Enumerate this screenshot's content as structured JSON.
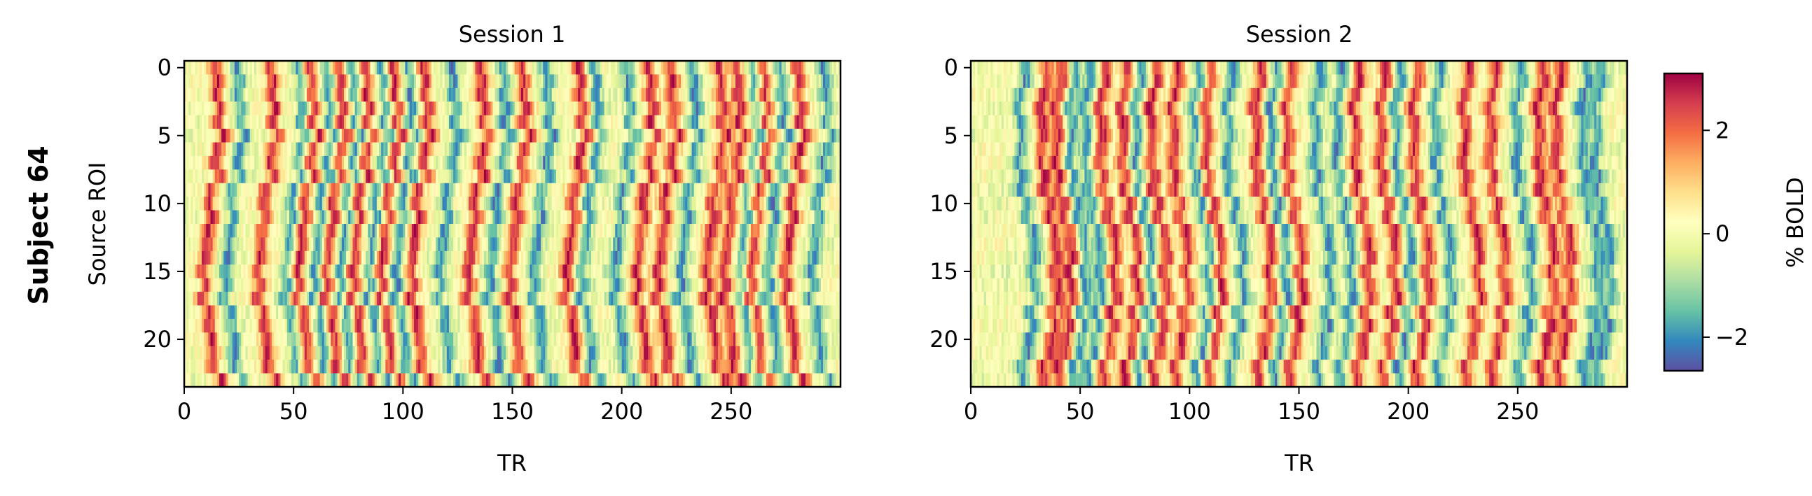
{
  "figure": {
    "row_label": "Subject 64"
  },
  "chart_data": [
    {
      "type": "heatmap",
      "title": "Session 1",
      "xlabel": "TR",
      "ylabel": "Source ROI",
      "xlim": [
        0,
        300
      ],
      "ylim": [
        24,
        0
      ],
      "n_rows": 24,
      "n_cols": 300,
      "x_ticks": [
        0,
        50,
        100,
        150,
        200,
        250
      ],
      "y_ticks": [
        0,
        5,
        10,
        15,
        20
      ],
      "x_tick_labels": [
        "0",
        "50",
        "100",
        "150",
        "200",
        "250"
      ],
      "y_tick_labels": [
        "0",
        "5",
        "10",
        "15",
        "20"
      ],
      "colormap": "Spectral_r",
      "peak_TRs": [
        12,
        37,
        55,
        68,
        80,
        93,
        107,
        133,
        152,
        178,
        210,
        220,
        242,
        250,
        262,
        278
      ],
      "trough_TRs": [
        22,
        50,
        63,
        75,
        88,
        100,
        120,
        143,
        163,
        185,
        200,
        230,
        258,
        270,
        290
      ]
    },
    {
      "type": "heatmap",
      "title": "Session 2",
      "xlabel": "TR",
      "ylabel": "",
      "xlim": [
        0,
        300
      ],
      "ylim": [
        24,
        0
      ],
      "n_rows": 24,
      "n_cols": 300,
      "x_ticks": [
        0,
        50,
        100,
        150,
        200,
        250
      ],
      "y_ticks": [
        0,
        5,
        10,
        15,
        20
      ],
      "x_tick_labels": [
        "0",
        "50",
        "100",
        "150",
        "200",
        "250"
      ],
      "y_tick_labels": [
        "0",
        "5",
        "10",
        "15",
        "20"
      ],
      "colormap": "Spectral_r",
      "peak_TRs": [
        35,
        42,
        62,
        72,
        85,
        95,
        110,
        133,
        147,
        178,
        190,
        205,
        228,
        240,
        262,
        270
      ],
      "trough_TRs": [
        25,
        48,
        55,
        78,
        105,
        120,
        140,
        160,
        170,
        197,
        215,
        252,
        282,
        288
      ]
    },
    {
      "type": "colorbar",
      "label": "% BOLD",
      "range": [
        -2.65,
        3.1
      ],
      "ticks": [
        -2,
        0,
        2
      ],
      "tick_labels": [
        "−2",
        "0",
        "2"
      ],
      "colormap": "Spectral_r"
    }
  ],
  "colors": {
    "Spectral_r": [
      "#5e4fa2",
      "#3288bd",
      "#66c2a5",
      "#abdda4",
      "#e6f598",
      "#ffffbf",
      "#fee08b",
      "#fdae61",
      "#f46d43",
      "#d53e4f",
      "#9e0142"
    ]
  }
}
